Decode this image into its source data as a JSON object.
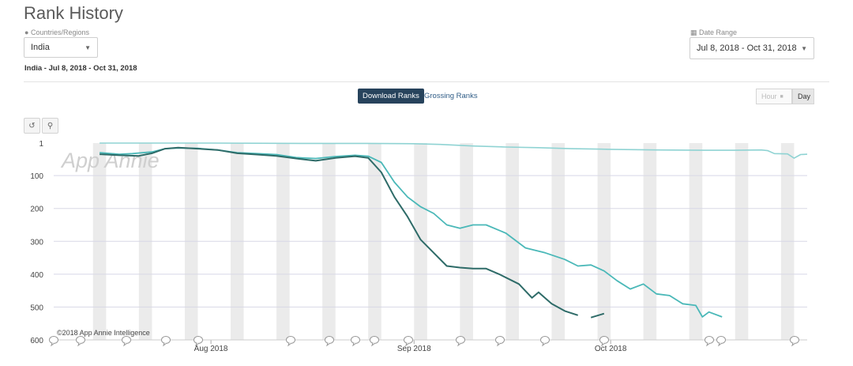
{
  "header": {
    "title": "Rank History"
  },
  "filters": {
    "countries_label": "Countries/Regions",
    "countries_value": "India",
    "date_label": "Date Range",
    "date_value": "Jul 8, 2018 - Oct 31, 2018",
    "summary": "India - Jul 8, 2018 - Oct 31, 2018"
  },
  "tabs": {
    "active": "Download Ranks",
    "other": "Grossing Ranks"
  },
  "granularity": {
    "hour": "Hour",
    "day": "Day"
  },
  "watermark": "App Annie",
  "copyright": "©2018 App Annie Intelligence",
  "colors": {
    "dark_series": "#2e6b68",
    "light_series": "#4ab8b8",
    "faint_series": "#8fd3d3",
    "active_tab": "#27435c"
  },
  "icons": [
    "globe-icon",
    "calendar-icon",
    "reset-icon",
    "zoom-icon",
    "speech-bubble-icon"
  ],
  "chart_data": {
    "type": "line",
    "title": "",
    "xlabel": "",
    "ylabel": "",
    "y_inverted": true,
    "ylim": [
      1,
      600
    ],
    "yticks": [
      1,
      100,
      200,
      300,
      400,
      500,
      600
    ],
    "xlim": [
      "2018-07-08",
      "2018-10-31"
    ],
    "xticks": [
      {
        "date": "2018-08-01",
        "label": "Aug 2018"
      },
      {
        "date": "2018-09-01",
        "label": "Sep 2018"
      },
      {
        "date": "2018-10-01",
        "label": "Oct 2018"
      }
    ],
    "weekend_bands": true,
    "grid": true,
    "series": [
      {
        "role": "faint",
        "points": [
          [
            "2018-07-15",
            1
          ],
          [
            "2018-08-01",
            1
          ],
          [
            "2018-08-15",
            2
          ],
          [
            "2018-08-25",
            2
          ],
          [
            "2018-09-01",
            3
          ],
          [
            "2018-09-05",
            5
          ],
          [
            "2018-09-10",
            10
          ],
          [
            "2018-09-15",
            13
          ],
          [
            "2018-09-20",
            15
          ],
          [
            "2018-09-25",
            18
          ],
          [
            "2018-10-01",
            20
          ],
          [
            "2018-10-08",
            22
          ],
          [
            "2018-10-15",
            23
          ],
          [
            "2018-10-20",
            23
          ],
          [
            "2018-10-24",
            22
          ],
          [
            "2018-10-25",
            24
          ],
          [
            "2018-10-26",
            33
          ],
          [
            "2018-10-28",
            34
          ],
          [
            "2018-10-29",
            47
          ],
          [
            "2018-10-30",
            36
          ],
          [
            "2018-10-31",
            35
          ]
        ]
      },
      {
        "role": "light",
        "points": [
          [
            "2018-07-15",
            30
          ],
          [
            "2018-07-18",
            35
          ],
          [
            "2018-07-20",
            33
          ],
          [
            "2018-07-23",
            28
          ],
          [
            "2018-07-25",
            18
          ],
          [
            "2018-07-27",
            16
          ],
          [
            "2018-07-30",
            17
          ],
          [
            "2018-08-02",
            22
          ],
          [
            "2018-08-05",
            30
          ],
          [
            "2018-08-08",
            33
          ],
          [
            "2018-08-11",
            36
          ],
          [
            "2018-08-14",
            45
          ],
          [
            "2018-08-17",
            48
          ],
          [
            "2018-08-20",
            42
          ],
          [
            "2018-08-23",
            38
          ],
          [
            "2018-08-25",
            41
          ],
          [
            "2018-08-27",
            60
          ],
          [
            "2018-08-29",
            120
          ],
          [
            "2018-08-31",
            165
          ],
          [
            "2018-09-02",
            195
          ],
          [
            "2018-09-04",
            215
          ],
          [
            "2018-09-06",
            250
          ],
          [
            "2018-09-08",
            260
          ],
          [
            "2018-09-10",
            250
          ],
          [
            "2018-09-12",
            250
          ],
          [
            "2018-09-15",
            275
          ],
          [
            "2018-09-18",
            320
          ],
          [
            "2018-09-21",
            335
          ],
          [
            "2018-09-24",
            355
          ],
          [
            "2018-09-26",
            375
          ],
          [
            "2018-09-28",
            372
          ],
          [
            "2018-09-30",
            390
          ],
          [
            "2018-10-02",
            420
          ],
          [
            "2018-10-04",
            445
          ],
          [
            "2018-10-06",
            430
          ],
          [
            "2018-10-08",
            460
          ],
          [
            "2018-10-10",
            465
          ],
          [
            "2018-10-12",
            490
          ],
          [
            "2018-10-14",
            495
          ],
          [
            "2018-10-15",
            530
          ],
          [
            "2018-10-16",
            515
          ],
          [
            "2018-10-18",
            530
          ]
        ]
      },
      {
        "role": "dark",
        "points": [
          [
            "2018-07-15",
            35
          ],
          [
            "2018-07-18",
            38
          ],
          [
            "2018-07-21",
            40
          ],
          [
            "2018-07-23",
            32
          ],
          [
            "2018-07-25",
            18
          ],
          [
            "2018-07-27",
            15
          ],
          [
            "2018-07-30",
            18
          ],
          [
            "2018-08-02",
            22
          ],
          [
            "2018-08-05",
            32
          ],
          [
            "2018-08-08",
            36
          ],
          [
            "2018-08-11",
            40
          ],
          [
            "2018-08-14",
            48
          ],
          [
            "2018-08-17",
            55
          ],
          [
            "2018-08-20",
            46
          ],
          [
            "2018-08-23",
            41
          ],
          [
            "2018-08-25",
            46
          ],
          [
            "2018-08-27",
            90
          ],
          [
            "2018-08-29",
            165
          ],
          [
            "2018-08-31",
            225
          ],
          [
            "2018-09-02",
            295
          ],
          [
            "2018-09-04",
            335
          ],
          [
            "2018-09-06",
            375
          ],
          [
            "2018-09-08",
            380
          ],
          [
            "2018-09-10",
            383
          ],
          [
            "2018-09-12",
            383
          ],
          [
            "2018-09-14",
            400
          ],
          [
            "2018-09-17",
            430
          ],
          [
            "2018-09-19",
            472
          ],
          [
            "2018-09-20",
            455
          ],
          [
            "2018-09-22",
            490
          ],
          [
            "2018-09-24",
            512
          ],
          [
            "2018-09-26",
            525
          ]
        ],
        "extra_segment": [
          [
            "2018-09-28",
            532
          ],
          [
            "2018-09-30",
            520
          ]
        ]
      }
    ]
  }
}
